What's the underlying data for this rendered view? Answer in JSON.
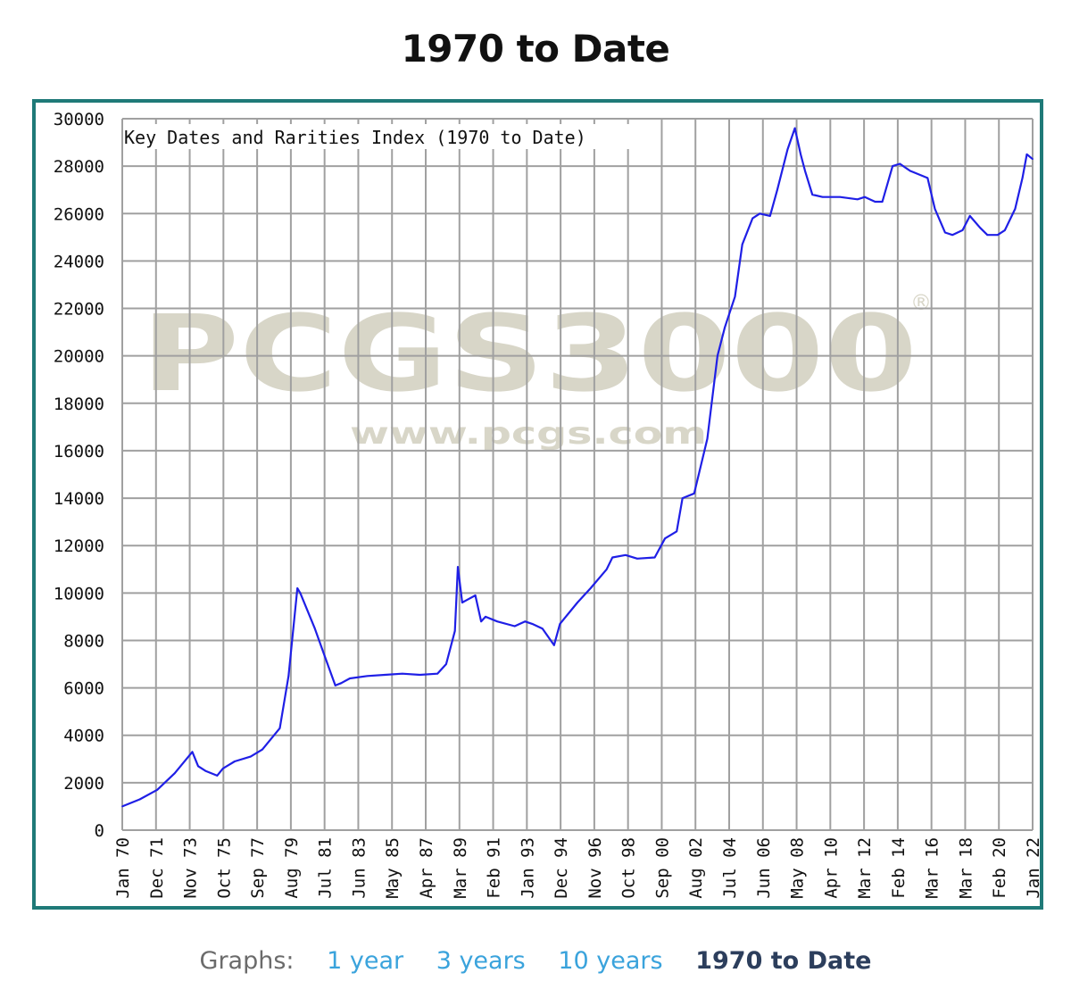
{
  "page": {
    "title": "1970 to Date"
  },
  "graph_nav": {
    "prefix": "Graphs:",
    "links": [
      "1 year",
      "3 years",
      "10 years"
    ],
    "current": "1970 to Date"
  },
  "colors": {
    "frame": "#1f7a78",
    "series": "#1f1fe6",
    "grid": "#a0a0a0",
    "watermark": "#d8d6c8",
    "link": "#3aa3dc",
    "current": "#2c3e5c"
  },
  "watermark": {
    "logo": "PCGS3000",
    "registered": "®",
    "url": "www.pcgs.com"
  },
  "chart_data": {
    "type": "line",
    "title": "Key Dates and Rarities Index (1970 to Date)",
    "xlabel": "",
    "ylabel": "",
    "ylim": [
      0,
      30000
    ],
    "yticks": [
      0,
      2000,
      4000,
      6000,
      8000,
      10000,
      12000,
      14000,
      16000,
      18000,
      20000,
      22000,
      24000,
      26000,
      28000,
      30000
    ],
    "xlim": [
      "1970-01",
      "2022-01"
    ],
    "xticks": [
      "Jan 70",
      "Dec 71",
      "Nov 73",
      "Oct 75",
      "Sep 77",
      "Aug 79",
      "Jul 81",
      "Jun 83",
      "May 85",
      "Apr 87",
      "Mar 89",
      "Feb 91",
      "Jan 93",
      "Dec 94",
      "Nov 96",
      "Oct 98",
      "Sep 00",
      "Aug 02",
      "Jul 04",
      "Jun 06",
      "May 08",
      "Apr 10",
      "Mar 12",
      "Feb 14",
      "Mar 16",
      "Mar 18",
      "Feb 20",
      "Jan 22"
    ],
    "grid": true,
    "legend": "none",
    "series": [
      {
        "x": [
          "1970-01",
          "1971-01",
          "1972-01",
          "1973-01",
          "1974-01",
          "1974-05",
          "1974-10",
          "1975-06",
          "1975-10",
          "1976-06",
          "1977-05",
          "1978-01",
          "1979-01",
          "1979-07",
          "1980-01",
          "1980-03",
          "1981-01",
          "1981-08",
          "1982-03",
          "1982-07",
          "1983-01",
          "1984-01",
          "1985-01",
          "1986-01",
          "1987-01",
          "1988-01",
          "1988-07",
          "1989-01",
          "1989-03",
          "1989-06",
          "1989-09",
          "1990-03",
          "1990-07",
          "1990-10",
          "1991-06",
          "1992-06",
          "1993-01",
          "1993-06",
          "1994-01",
          "1994-09",
          "1995-01",
          "1996-01",
          "1996-10",
          "1997-09",
          "1998-01",
          "1998-10",
          "1999-06",
          "2000-06",
          "2001-01",
          "2001-09",
          "2002-01",
          "2002-09",
          "2003-06",
          "2003-10",
          "2004-01",
          "2004-06",
          "2005-01",
          "2005-06",
          "2006-01",
          "2006-06",
          "2007-01",
          "2007-06",
          "2008-01",
          "2008-06",
          "2008-10",
          "2009-01",
          "2009-06",
          "2010-01",
          "2011-01",
          "2012-01",
          "2012-06",
          "2013-01",
          "2013-06",
          "2014-01",
          "2014-06",
          "2015-01",
          "2016-01",
          "2016-06",
          "2017-01",
          "2017-06",
          "2018-01",
          "2018-06",
          "2019-01",
          "2019-06",
          "2020-01",
          "2020-06",
          "2021-01",
          "2021-06",
          "2021-09",
          "2022-01"
        ],
        "values": [
          1000,
          1300,
          1700,
          2400,
          3300,
          2700,
          2500,
          2300,
          2600,
          2900,
          3100,
          3400,
          4300,
          6500,
          10200,
          10000,
          8500,
          7300,
          6100,
          6200,
          6400,
          6500,
          6550,
          6600,
          6550,
          6600,
          7000,
          8400,
          11100,
          9600,
          9700,
          9900,
          8800,
          9000,
          8800,
          8600,
          8800,
          8700,
          8500,
          7800,
          8700,
          9600,
          10200,
          11000,
          11500,
          11600,
          11450,
          11500,
          12300,
          12600,
          14000,
          14200,
          16500,
          18500,
          20000,
          21200,
          22500,
          24700,
          25800,
          26000,
          25900,
          27000,
          28700,
          29600,
          28500,
          27800,
          26800,
          26700,
          26700,
          26600,
          26700,
          26500,
          26500,
          28000,
          28100,
          27800,
          27500,
          26200,
          25200,
          25100,
          25300,
          25900,
          25400,
          25100,
          25100,
          25300,
          26200,
          27500,
          28500,
          28300
        ]
      }
    ]
  }
}
